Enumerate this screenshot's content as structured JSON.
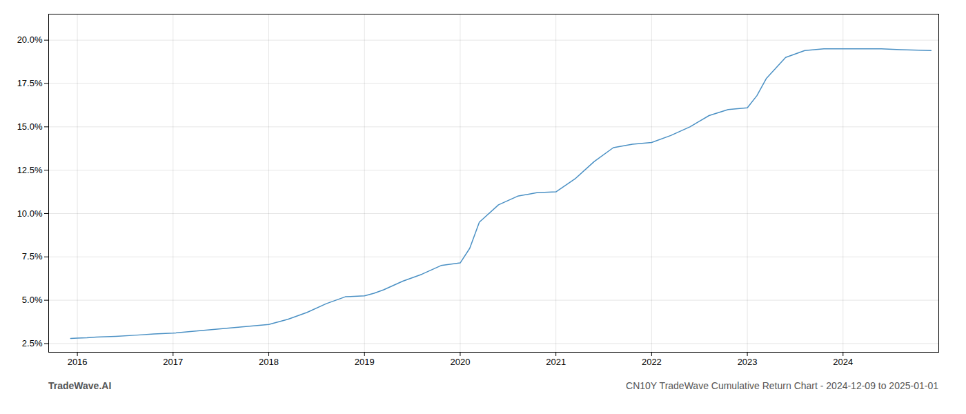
{
  "chart_data": {
    "type": "line",
    "title": "CN10Y TradeWave Cumulative Return Chart - 2024-12-09 to 2025-01-01",
    "annotations": [
      "TradeWave.AI"
    ],
    "x": [
      2015.93,
      2016.0,
      2016.1,
      2016.2,
      2016.4,
      2016.6,
      2016.8,
      2017.0,
      2017.2,
      2017.4,
      2017.6,
      2017.8,
      2018.0,
      2018.2,
      2018.4,
      2018.6,
      2018.8,
      2019.0,
      2019.1,
      2019.2,
      2019.4,
      2019.6,
      2019.8,
      2020.0,
      2020.1,
      2020.2,
      2020.4,
      2020.6,
      2020.8,
      2021.0,
      2021.2,
      2021.4,
      2021.6,
      2021.8,
      2022.0,
      2022.2,
      2022.4,
      2022.6,
      2022.8,
      2023.0,
      2023.1,
      2023.2,
      2023.4,
      2023.6,
      2023.8,
      2024.0,
      2024.2,
      2024.4,
      2024.6,
      2024.92
    ],
    "values": [
      2.8,
      2.82,
      2.84,
      2.88,
      2.92,
      2.98,
      3.05,
      3.1,
      3.2,
      3.3,
      3.4,
      3.5,
      3.6,
      3.9,
      4.3,
      4.8,
      5.2,
      5.25,
      5.4,
      5.6,
      6.1,
      6.5,
      7.0,
      7.15,
      8.0,
      9.5,
      10.5,
      11.0,
      11.2,
      11.25,
      12.0,
      13.0,
      13.8,
      14.0,
      14.1,
      14.5,
      15.0,
      15.65,
      16.0,
      16.1,
      16.8,
      17.8,
      19.0,
      19.4,
      19.5,
      19.5,
      19.5,
      19.5,
      19.45,
      19.4
    ],
    "color": "#4a90c4",
    "xlim": [
      2015.7,
      2025.0
    ],
    "xticks": [
      2016,
      2017,
      2018,
      2019,
      2020,
      2021,
      2022,
      2023,
      2024
    ],
    "ylim": [
      2.0,
      21.5
    ],
    "yticks": [
      {
        "value": 2.5,
        "label": "2.5%"
      },
      {
        "value": 5.0,
        "label": "5.0%"
      },
      {
        "value": 7.5,
        "label": "7.5%"
      },
      {
        "value": 10.0,
        "label": "10.0%"
      },
      {
        "value": 12.5,
        "label": "12.5%"
      },
      {
        "value": 15.0,
        "label": "15.0%"
      },
      {
        "value": 17.5,
        "label": "17.5%"
      },
      {
        "value": 20.0,
        "label": "20.0%"
      }
    ],
    "grid": true
  }
}
